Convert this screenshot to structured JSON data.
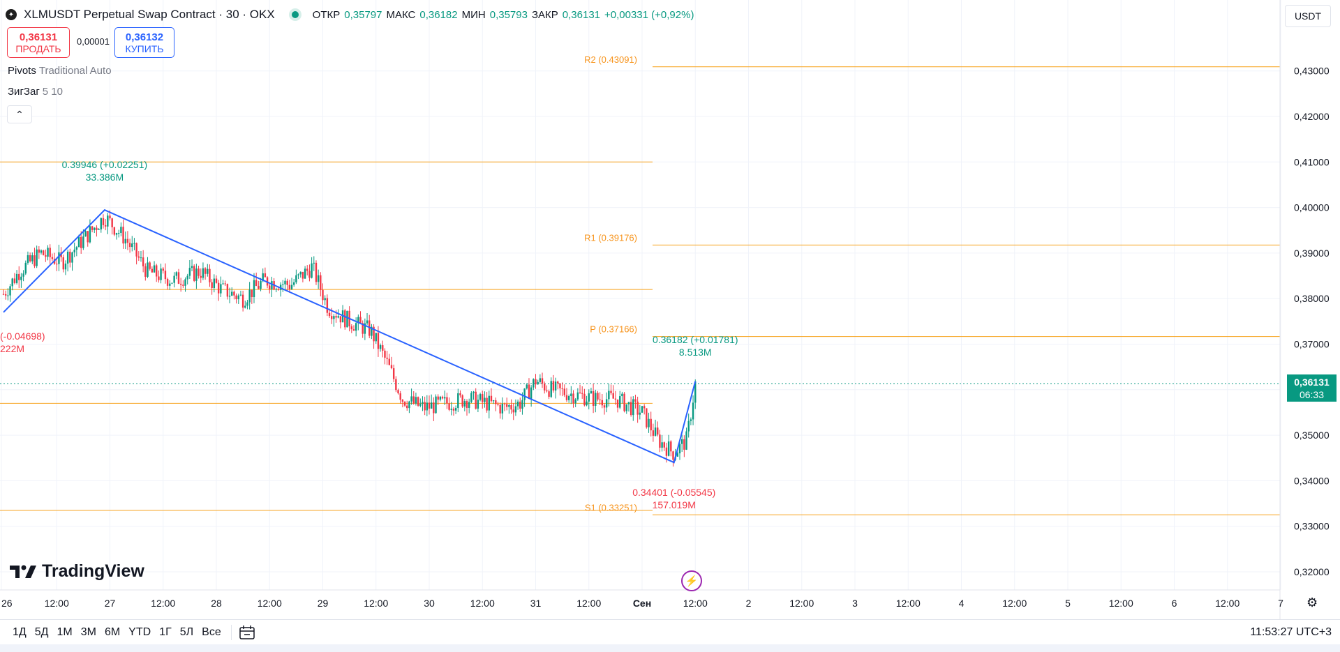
{
  "header": {
    "title": "XLMUSDT Perpetual Swap Contract · 30 · OKX",
    "ohlc": [
      {
        "label": "ОТКР",
        "value": "0,35797"
      },
      {
        "label": "МАКС",
        "value": "0,36182"
      },
      {
        "label": "МИН",
        "value": "0,35793"
      },
      {
        "label": "ЗАКР",
        "value": "0,36131"
      }
    ],
    "change": "+0,00331 (+0,92%)"
  },
  "trade": {
    "sell_price": "0,36131",
    "sell_label": "ПРОДАТЬ",
    "spread": "0,00001",
    "buy_price": "0,36132",
    "buy_label": "КУПИТЬ"
  },
  "indicators": [
    {
      "name": "Pivots",
      "params": "Traditional Auto"
    },
    {
      "name": "ЗигЗаг",
      "params": "5 10"
    }
  ],
  "currency": "USDT",
  "price_tag": {
    "price": "0,36131",
    "countdown": "06:33"
  },
  "logo_text": "TradingView",
  "time_ranges": [
    "1Д",
    "5Д",
    "1M",
    "3M",
    "6M",
    "YTD",
    "1Г",
    "5Л",
    "Все"
  ],
  "clock": "11:53:27 UTC+3",
  "colors": {
    "up": "#089981",
    "down": "#f23645",
    "pivot": "#f7a21b",
    "zigzag": "#2962ff",
    "label_orange": "#f7931a"
  },
  "chart_data": {
    "type": "line",
    "title": "XLMUSDT Perpetual Swap Contract · 30 · OKX",
    "y_ticks": [
      "0,32000",
      "0,33000",
      "0,34000",
      "0,35000",
      "0,36000",
      "0,37000",
      "0,38000",
      "0,39000",
      "0,40000",
      "0,41000",
      "0,42000",
      "0,43000"
    ],
    "ylim": [
      0.315,
      0.436
    ],
    "x_ticks": [
      "26",
      "12:00",
      "27",
      "12:00",
      "28",
      "12:00",
      "29",
      "12:00",
      "30",
      "12:00",
      "31",
      "12:00",
      "Сен",
      "12:00",
      "2",
      "12:00",
      "3",
      "12:00",
      "4",
      "12:00",
      "5",
      "12:00",
      "6",
      "12:00",
      "7"
    ],
    "pivots": {
      "current": [
        {
          "label": "R2 (0.43091)",
          "value": 0.43091
        },
        {
          "label": "R1 (0.39176)",
          "value": 0.39176
        },
        {
          "label": "P (0.37166)",
          "value": 0.37166
        },
        {
          "label": "S1 (0.33251)",
          "value": 0.33251
        }
      ],
      "previous": [
        0.41,
        0.382,
        0.357,
        0.3335
      ]
    },
    "zigzag": [
      {
        "t": 0.0,
        "price": 0.377
      },
      {
        "t": 0.95,
        "price": 0.39946
      },
      {
        "t": 6.3,
        "price": 0.34401
      },
      {
        "t": 6.5,
        "price": 0.36182
      }
    ],
    "zigzag_labels": [
      {
        "text": "0.39946 (+0.02251)",
        "volume": "33.386M",
        "kind": "high"
      },
      {
        "text": "(-0.04698)",
        "volume": "222M",
        "kind": "low"
      },
      {
        "text": "0.34401 (-0.05545)",
        "volume": "157.019M",
        "kind": "low"
      },
      {
        "text": "0.36182 (+0.01781)",
        "volume": "8.513M",
        "kind": "high"
      }
    ],
    "last_price": 0.36131,
    "candle_path": [
      [
        0.0,
        0.381
      ],
      [
        0.15,
        0.386
      ],
      [
        0.35,
        0.39
      ],
      [
        0.55,
        0.388
      ],
      [
        0.75,
        0.393
      ],
      [
        0.95,
        0.398
      ],
      [
        1.15,
        0.393
      ],
      [
        1.35,
        0.386
      ],
      [
        1.6,
        0.384
      ],
      [
        1.85,
        0.386
      ],
      [
        2.05,
        0.382
      ],
      [
        2.25,
        0.38
      ],
      [
        2.45,
        0.384
      ],
      [
        2.7,
        0.383
      ],
      [
        2.9,
        0.387
      ],
      [
        3.05,
        0.378
      ],
      [
        3.25,
        0.375
      ],
      [
        3.45,
        0.373
      ],
      [
        3.6,
        0.366
      ],
      [
        3.75,
        0.358
      ],
      [
        3.95,
        0.356
      ],
      [
        4.15,
        0.357
      ],
      [
        4.35,
        0.358
      ],
      [
        4.55,
        0.357
      ],
      [
        4.7,
        0.356
      ],
      [
        4.85,
        0.357
      ],
      [
        5.0,
        0.362
      ],
      [
        5.15,
        0.36
      ],
      [
        5.35,
        0.359
      ],
      [
        5.55,
        0.358
      ],
      [
        5.75,
        0.358
      ],
      [
        6.0,
        0.355
      ],
      [
        6.15,
        0.349
      ],
      [
        6.3,
        0.346
      ],
      [
        6.42,
        0.349
      ],
      [
        6.5,
        0.3613
      ]
    ]
  }
}
